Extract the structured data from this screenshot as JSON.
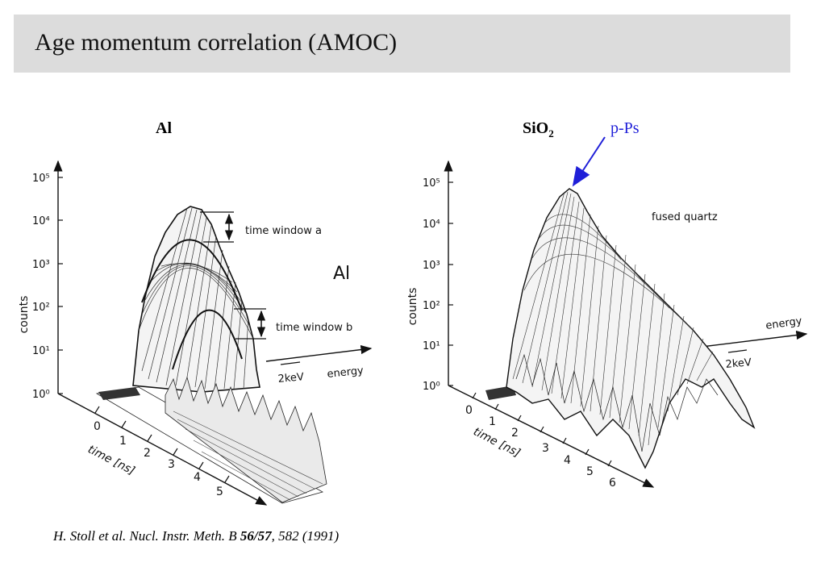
{
  "slide": {
    "title": "Age momentum correlation (AMOC)"
  },
  "panels": {
    "left": {
      "header": "Al",
      "inset_label": "Al",
      "y_axis_label": "counts",
      "y_ticks": [
        "10⁰",
        "10¹",
        "10²",
        "10³",
        "10⁴",
        "10⁵"
      ],
      "time_axis_label": "time [ns]",
      "time_ticks": [
        "0",
        "1",
        "2",
        "3",
        "4",
        "5"
      ],
      "energy_label": "energy",
      "energy_scale": "2keV",
      "annotation_a": "time window a",
      "annotation_b": "time window b"
    },
    "right": {
      "header_main": "SiO",
      "header_sub": "2",
      "callout": "p-Ps",
      "inset_label": "fused quartz",
      "y_axis_label": "counts",
      "y_ticks": [
        "10⁰",
        "10¹",
        "10²",
        "10³",
        "10⁴",
        "10⁵"
      ],
      "time_axis_label": "time [ns]",
      "time_ticks": [
        "0",
        "1",
        "2",
        "3",
        "4",
        "5",
        "6"
      ],
      "energy_label": "energy",
      "energy_scale": "2keV"
    }
  },
  "citation": {
    "authors": "H. Stoll et al. Nucl. Instr. Meth. B ",
    "volume": "56/57",
    "rest": ", 582 (1991)"
  },
  "colors": {
    "callout": "#1f1fd8",
    "title_bar": "#dcdcdc"
  }
}
